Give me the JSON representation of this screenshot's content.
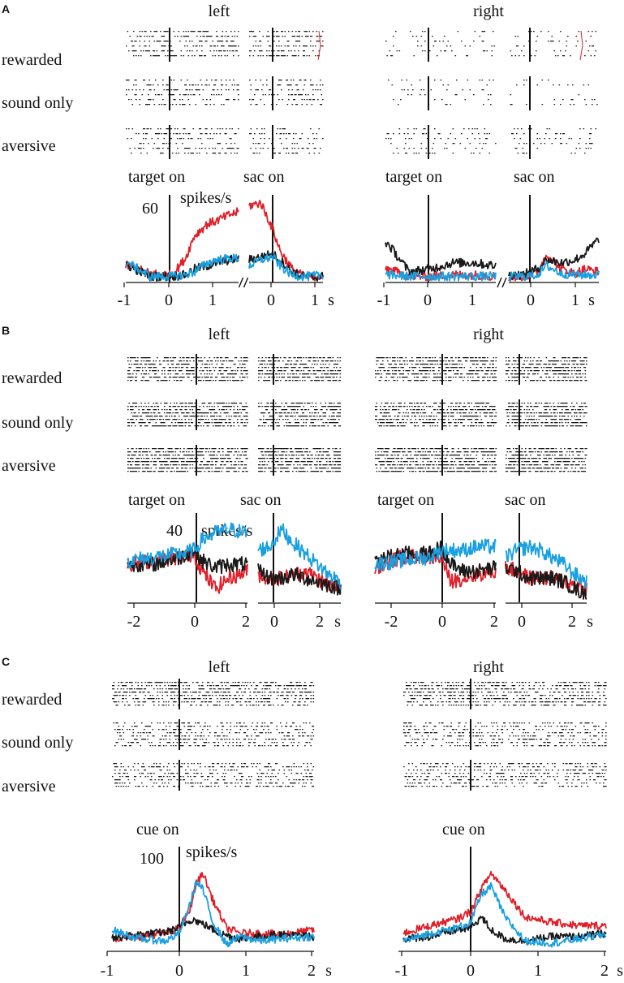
{
  "figure": {
    "panel_labels": [
      "A",
      "B",
      "C"
    ],
    "sides": [
      "left",
      "right"
    ],
    "conditions": [
      "rewarded",
      "sound only",
      "aversive"
    ],
    "event_labels": {
      "target": "target on",
      "saccade": "sac on",
      "cue": "cue on"
    },
    "units_label": "spikes/s",
    "time_unit": "s",
    "colors": {
      "rewarded": "#e0202a",
      "sound_only": "#1a1a1a",
      "aversive": "#1aa0e0",
      "raster": "#1a1a1a",
      "highlight": "#e0202a"
    }
  },
  "chart_data": [
    {
      "panel": "A",
      "type": "line",
      "title_left": "left",
      "title_right": "right",
      "ylabel": "spikes/s",
      "y_scale_value": 60,
      "alignments": [
        "target on",
        "sac on"
      ],
      "xticks_target_aligned": [
        "-1",
        "0",
        "1"
      ],
      "xticks_saccade_aligned": [
        "0",
        "1"
      ],
      "xlabel": "s",
      "xlim_target_aligned": [
        -1.05,
        1.5
      ],
      "xlim_saccade_aligned": [
        -0.6,
        1.3
      ],
      "series": [
        {
          "name": "rewarded",
          "color": "#e0202a",
          "left": {
            "target": {
              "x": [
                -1,
                -0.5,
                0,
                0.3,
                0.5,
                0.8,
                1,
                1.3,
                1.5
              ],
              "y": [
                10,
                5,
                4,
                15,
                30,
                38,
                40,
                44,
                46
              ]
            },
            "saccade": {
              "x": [
                -0.6,
                -0.3,
                0,
                0.2,
                0.5,
                0.8,
                1,
                1.3
              ],
              "y": [
                50,
                52,
                35,
                20,
                8,
                3,
                3,
                3
              ]
            }
          },
          "right": {
            "target": {
              "x": [
                -1,
                -0.5,
                0,
                0.5,
                1,
                1.5
              ],
              "y": [
                8,
                3,
                3,
                4,
                4,
                3
              ]
            },
            "saccade": {
              "x": [
                -0.6,
                -0.3,
                0,
                0.2,
                0.5,
                0.8,
                1,
                1.3
              ],
              "y": [
                2,
                3,
                5,
                18,
                8,
                5,
                8,
                6
              ]
            }
          }
        },
        {
          "name": "sound only",
          "color": "#1a1a1a",
          "left": {
            "target": {
              "x": [
                -1,
                -0.5,
                0,
                0.3,
                0.5,
                0.8,
                1,
                1.3,
                1.5
              ],
              "y": [
                10,
                3,
                3,
                4,
                8,
                10,
                12,
                14,
                15
              ]
            },
            "saccade": {
              "x": [
                -0.6,
                -0.3,
                0,
                0.2,
                0.5,
                0.8,
                1,
                1.3
              ],
              "y": [
                14,
                16,
                18,
                14,
                6,
                3,
                2,
                3
              ]
            }
          },
          "right": {
            "target": {
              "x": [
                -1,
                -0.5,
                0,
                0.5,
                1,
                1.5
              ],
              "y": [
                25,
                6,
                8,
                12,
                12,
                10
              ]
            },
            "saccade": {
              "x": [
                -0.6,
                -0.3,
                0,
                0.2,
                0.5,
                0.8,
                1,
                1.3
              ],
              "y": [
                4,
                4,
                8,
                14,
                12,
                14,
                18,
                28
              ]
            }
          }
        },
        {
          "name": "aversive",
          "color": "#1aa0e0",
          "left": {
            "target": {
              "x": [
                -1,
                -0.5,
                0,
                0.3,
                0.5,
                0.8,
                1,
                1.3,
                1.5
              ],
              "y": [
                12,
                3,
                3,
                4,
                6,
                12,
                14,
                15,
                15
              ]
            },
            "saccade": {
              "x": [
                -0.6,
                -0.3,
                0,
                0.2,
                0.5,
                0.8,
                1,
                1.3
              ],
              "y": [
                10,
                14,
                16,
                10,
                4,
                3,
                3,
                4
              ]
            }
          },
          "right": {
            "target": {
              "x": [
                -1,
                -0.5,
                0,
                0.5,
                1,
                1.5
              ],
              "y": [
                4,
                3,
                3,
                3,
                3,
                3
              ]
            },
            "saccade": {
              "x": [
                -0.6,
                -0.3,
                0,
                0.2,
                0.5,
                0.8,
                1,
                1.3
              ],
              "y": [
                3,
                3,
                4,
                10,
                5,
                4,
                4,
                4
              ]
            }
          }
        }
      ]
    },
    {
      "panel": "B",
      "type": "line",
      "title_left": "left",
      "title_right": "right",
      "ylabel": "spikes/s",
      "y_scale_value": 40,
      "alignments": [
        "target on",
        "sac on"
      ],
      "xticks_target_aligned": [
        "-2",
        "0",
        "2"
      ],
      "xticks_saccade_aligned": [
        "0",
        "2"
      ],
      "xlabel": "s",
      "xlim_target_aligned": [
        -2.5,
        2
      ],
      "xlim_saccade_aligned": [
        -1,
        2.5
      ],
      "series": [
        {
          "name": "rewarded",
          "color": "#e0202a",
          "left": {
            "target": {
              "x": [
                -2.5,
                -1.5,
                -0.5,
                0,
                0.3,
                0.8,
                1.3,
                2
              ],
              "y": [
                10,
                11,
                12,
                13,
                8,
                3,
                6,
                8
              ]
            },
            "saccade": {
              "x": [
                -1,
                -0.5,
                0,
                0.5,
                1,
                1.5,
                2,
                2.5
              ],
              "y": [
                7,
                6,
                6,
                7,
                8,
                6,
                4,
                3
              ]
            }
          },
          "right": {
            "target": {
              "x": [
                -2.5,
                -1.5,
                -0.5,
                0,
                0.3,
                0.8,
                1.3,
                2
              ],
              "y": [
                9,
                12,
                12,
                12,
                5,
                6,
                7,
                8
              ]
            },
            "saccade": {
              "x": [
                -1,
                -0.5,
                0,
                0.5,
                1,
                1.5,
                2,
                2.5
              ],
              "y": [
                9,
                8,
                6,
                6,
                6,
                5,
                4,
                3
              ]
            }
          }
        },
        {
          "name": "sound only",
          "color": "#1a1a1a",
          "left": {
            "target": {
              "x": [
                -2.5,
                -1.5,
                -0.5,
                0,
                0.3,
                0.8,
                1.3,
                2
              ],
              "y": [
                10,
                10,
                12,
                14,
                11,
                9,
                10,
                10
              ]
            },
            "saccade": {
              "x": [
                -1,
                -0.5,
                0,
                0.5,
                1,
                1.5,
                2,
                2.5
              ],
              "y": [
                8,
                6,
                6,
                7,
                6,
                5,
                4,
                3
              ]
            }
          },
          "right": {
            "target": {
              "x": [
                -2.5,
                -1.5,
                -0.5,
                0,
                0.3,
                0.8,
                1.3,
                2
              ],
              "y": [
                11,
                13,
                13,
                15,
                10,
                8,
                8,
                9
              ]
            },
            "saccade": {
              "x": [
                -1,
                -0.5,
                0,
                0.5,
                1,
                1.5,
                2,
                2.5
              ],
              "y": [
                9,
                8,
                6,
                6,
                6,
                5,
                3,
                1
              ]
            }
          }
        },
        {
          "name": "aversive",
          "color": "#1aa0e0",
          "left": {
            "target": {
              "x": [
                -2.5,
                -1.5,
                -0.5,
                0,
                0.3,
                0.8,
                1.3,
                2
              ],
              "y": [
                11,
                12,
                13,
                14,
                17,
                19,
                20,
                19
              ]
            },
            "saccade": {
              "x": [
                -1,
                -0.5,
                0,
                0.5,
                1,
                1.5,
                2,
                2.5
              ],
              "y": [
                14,
                15,
                20,
                16,
                13,
                10,
                7,
                5
              ]
            }
          },
          "right": {
            "target": {
              "x": [
                -2.5,
                -1.5,
                -0.5,
                0,
                0.3,
                0.8,
                1.3,
                2
              ],
              "y": [
                10,
                11,
                12,
                14,
                14,
                14,
                15,
                15
              ]
            },
            "saccade": {
              "x": [
                -1,
                -0.5,
                0,
                0.5,
                1,
                1.5,
                2,
                2.5
              ],
              "y": [
                12,
                14,
                15,
                14,
                12,
                10,
                7,
                5
              ]
            }
          }
        }
      ]
    },
    {
      "panel": "C",
      "type": "line",
      "title_left": "left",
      "title_right": "right",
      "ylabel": "spikes/s",
      "y_scale_value": 100,
      "alignments": [
        "cue on"
      ],
      "xticks": [
        "-1",
        "0",
        "1",
        "2"
      ],
      "xlabel": "s",
      "xlim": [
        -1,
        2
      ],
      "series": [
        {
          "name": "rewarded",
          "color": "#e0202a",
          "left": {
            "x": [
              -1,
              -0.6,
              -0.2,
              0,
              0.15,
              0.25,
              0.35,
              0.5,
              0.7,
              0.9,
              1.2,
              1.5,
              2
            ],
            "y": [
              10,
              12,
              15,
              20,
              35,
              60,
              70,
              45,
              20,
              15,
              15,
              14,
              18
            ]
          },
          "right": {
            "x": [
              -1,
              -0.6,
              -0.2,
              0,
              0.15,
              0.3,
              0.5,
              0.8,
              1.2,
              1.6,
              2
            ],
            "y": [
              15,
              22,
              28,
              35,
              55,
              70,
              55,
              30,
              25,
              22,
              22
            ]
          }
        },
        {
          "name": "sound only",
          "color": "#1a1a1a",
          "left": {
            "x": [
              -1,
              -0.6,
              -0.2,
              0,
              0.1,
              0.2,
              0.4,
              0.6,
              0.9,
              1.2,
              1.5,
              2
            ],
            "y": [
              10,
              14,
              16,
              20,
              25,
              28,
              22,
              15,
              10,
              12,
              14,
              12
            ]
          },
          "right": {
            "x": [
              -1,
              -0.6,
              -0.2,
              0,
              0.15,
              0.3,
              0.5,
              0.8,
              1.2,
              1.6,
              2
            ],
            "y": [
              10,
              12,
              18,
              20,
              30,
              18,
              10,
              8,
              12,
              12,
              15
            ]
          }
        },
        {
          "name": "aversive",
          "color": "#1aa0e0",
          "left": {
            "x": [
              -1,
              -0.6,
              -0.2,
              0,
              0.15,
              0.25,
              0.35,
              0.5,
              0.7,
              0.9,
              1.2,
              1.5,
              2
            ],
            "y": [
              18,
              10,
              8,
              15,
              40,
              62,
              55,
              25,
              5,
              12,
              8,
              10,
              12
            ]
          },
          "right": {
            "x": [
              -1,
              -0.6,
              -0.2,
              0,
              0.15,
              0.3,
              0.5,
              0.8,
              1.2,
              1.6,
              2
            ],
            "y": [
              8,
              15,
              20,
              25,
              50,
              58,
              30,
              8,
              6,
              10,
              14
            ]
          }
        }
      ]
    }
  ]
}
